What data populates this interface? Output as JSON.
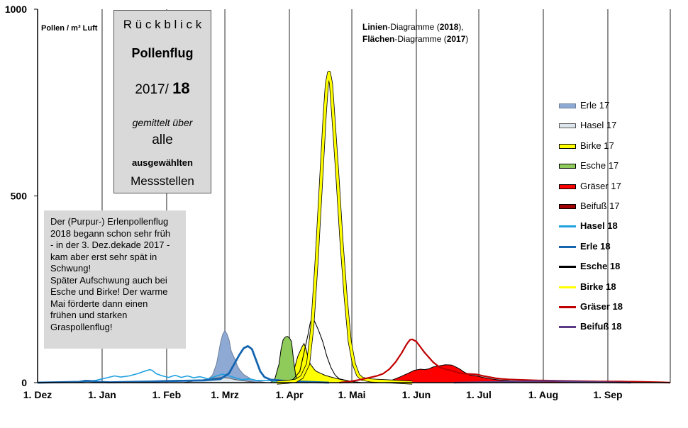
{
  "chart_data": {
    "type": "area",
    "y_axis_unit": "Pollen / m³ Luft",
    "ylim": [
      0,
      1000
    ],
    "y_ticks": [
      "0",
      "500",
      "1000"
    ],
    "x_ticks": [
      "1. Dez",
      "1. Jan",
      "1. Feb",
      "1. Mrz",
      "1. Apr",
      "1. Mai",
      "1. Jun",
      "1. Jul",
      "1. Aug",
      "1. Sep"
    ],
    "x_tick_days": [
      0,
      31,
      62,
      90,
      121,
      151,
      182,
      212,
      243,
      274
    ],
    "xlim_days": [
      0,
      304
    ],
    "grid": "vertical lines at month starts",
    "subtitle_line1_bold": "Linien",
    "subtitle_line1_rest": "-Diagramme (",
    "subtitle_line1_year": "2018",
    "subtitle_line1_end": "),",
    "subtitle_line2_bold": "Flächen",
    "subtitle_line2_rest": "-Diagramme (",
    "subtitle_line2_year": "2017",
    "subtitle_line2_end": ")",
    "title_box": {
      "line1": "R ü c k b l i c k",
      "line2": "Pollenflug",
      "line3_a": "2017/",
      "line3_b": "18",
      "line4": "gemittelt über",
      "line5": "alle",
      "line6": "ausgewählten",
      "line7": "Messstellen"
    },
    "note": [
      "Der (Purpur-) Erlenpollenflug",
      "2018  begann schon sehr früh",
      "- in der 3. Dez.dekade 2017 -",
      "kam aber erst sehr spät in",
      "Schwung!",
      "Später Aufschwung auch bei",
      "Esche und Birke! Der warme",
      "Mai förderte dann einen",
      "frühen und starken",
      "Graspollenflug!"
    ],
    "series": [
      {
        "name": "Erle 17",
        "kind": "area",
        "color": "#8ea9d3",
        "stroke": "#6e7f99",
        "bold": false,
        "points": [
          [
            80,
            0
          ],
          [
            84,
            20
          ],
          [
            86,
            50
          ],
          [
            87,
            80
          ],
          [
            88,
            110
          ],
          [
            89,
            130
          ],
          [
            90,
            140
          ],
          [
            91,
            130
          ],
          [
            92,
            115
          ],
          [
            93,
            85
          ],
          [
            95,
            60
          ],
          [
            96,
            45
          ],
          [
            97,
            35
          ],
          [
            99,
            22
          ],
          [
            101,
            15
          ],
          [
            103,
            8
          ],
          [
            106,
            4
          ],
          [
            110,
            0
          ]
        ]
      },
      {
        "name": "Hasel 17",
        "kind": "area",
        "color": "#dde6ec",
        "stroke": "#555555",
        "bold": false,
        "points": [
          [
            70,
            0
          ],
          [
            75,
            4
          ],
          [
            80,
            8
          ],
          [
            85,
            12
          ],
          [
            89,
            14
          ],
          [
            92,
            12
          ],
          [
            95,
            8
          ],
          [
            100,
            4
          ],
          [
            106,
            0
          ]
        ]
      },
      {
        "name": "Birke 17",
        "kind": "area",
        "color": "#ffff00",
        "stroke": "#000000",
        "bold": false,
        "points": [
          [
            118,
            0
          ],
          [
            121,
            6
          ],
          [
            123,
            30
          ],
          [
            125,
            70
          ],
          [
            127,
            95
          ],
          [
            128,
            105
          ],
          [
            129,
            90
          ],
          [
            130,
            65
          ],
          [
            131,
            50
          ],
          [
            133,
            35
          ],
          [
            134,
            30
          ],
          [
            136,
            25
          ],
          [
            138,
            20
          ],
          [
            141,
            15
          ],
          [
            146,
            8
          ],
          [
            151,
            3
          ],
          [
            156,
            0
          ]
        ]
      },
      {
        "name": "Esche 17",
        "kind": "area",
        "color": "#8fcb5a",
        "stroke": "#000000",
        "bold": false,
        "points": [
          [
            112,
            0
          ],
          [
            114,
            10
          ],
          [
            116,
            50
          ],
          [
            117,
            90
          ],
          [
            118,
            115
          ],
          [
            119,
            122
          ],
          [
            120,
            124
          ],
          [
            121,
            120
          ],
          [
            122,
            110
          ],
          [
            123,
            60
          ],
          [
            124,
            20
          ],
          [
            125,
            5
          ],
          [
            128,
            0
          ]
        ]
      },
      {
        "name": "Gräser 17",
        "kind": "area",
        "color": "#ff0000",
        "stroke": "#000000",
        "bold": false,
        "points": [
          [
            165,
            0
          ],
          [
            170,
            6
          ],
          [
            174,
            15
          ],
          [
            178,
            25
          ],
          [
            181,
            33
          ],
          [
            184,
            36
          ],
          [
            186,
            35
          ],
          [
            188,
            37
          ],
          [
            190,
            42
          ],
          [
            193,
            45
          ],
          [
            196,
            48
          ],
          [
            199,
            47
          ],
          [
            201,
            42
          ],
          [
            203,
            36
          ],
          [
            205,
            28
          ],
          [
            208,
            20
          ],
          [
            211,
            18
          ],
          [
            214,
            14
          ],
          [
            218,
            10
          ],
          [
            222,
            7
          ],
          [
            227,
            5
          ],
          [
            235,
            3
          ],
          [
            242,
            2
          ],
          [
            245,
            0
          ]
        ]
      },
      {
        "name": "Beifuß 17",
        "kind": "area",
        "color": "#a00000",
        "stroke": "#000000",
        "bold": false,
        "points": [
          [
            225,
            0
          ],
          [
            230,
            3
          ],
          [
            236,
            5
          ],
          [
            243,
            6
          ],
          [
            248,
            5
          ],
          [
            253,
            4
          ],
          [
            258,
            2
          ],
          [
            262,
            0
          ]
        ]
      },
      {
        "name": "Hasel 18",
        "kind": "line",
        "color": "#1fa0e0",
        "width": 1.6,
        "bold": true,
        "points": [
          [
            0,
            0
          ],
          [
            20,
            2
          ],
          [
            25,
            4
          ],
          [
            28,
            6
          ],
          [
            31,
            10
          ],
          [
            34,
            14
          ],
          [
            37,
            18
          ],
          [
            40,
            15
          ],
          [
            44,
            18
          ],
          [
            48,
            24
          ],
          [
            51,
            30
          ],
          [
            54,
            35
          ],
          [
            55,
            33
          ],
          [
            57,
            24
          ],
          [
            60,
            18
          ],
          [
            63,
            14
          ],
          [
            66,
            20
          ],
          [
            69,
            14
          ],
          [
            72,
            18
          ],
          [
            75,
            13
          ],
          [
            78,
            16
          ],
          [
            82,
            10
          ],
          [
            86,
            18
          ],
          [
            89,
            23
          ],
          [
            92,
            18
          ],
          [
            95,
            13
          ],
          [
            98,
            8
          ],
          [
            102,
            10
          ],
          [
            105,
            6
          ],
          [
            110,
            6
          ],
          [
            115,
            4
          ],
          [
            120,
            2
          ],
          [
            130,
            0
          ]
        ]
      },
      {
        "name": "Erle 18",
        "kind": "line",
        "color": "#1565b0",
        "width": 2.8,
        "bold": true,
        "points": [
          [
            0,
            0
          ],
          [
            20,
            2
          ],
          [
            23,
            5
          ],
          [
            26,
            4
          ],
          [
            29,
            2
          ],
          [
            35,
            1
          ],
          [
            45,
            2
          ],
          [
            55,
            3
          ],
          [
            60,
            4
          ],
          [
            70,
            5
          ],
          [
            80,
            6
          ],
          [
            88,
            10
          ],
          [
            92,
            25
          ],
          [
            95,
            55
          ],
          [
            97,
            75
          ],
          [
            99,
            92
          ],
          [
            101,
            98
          ],
          [
            103,
            90
          ],
          [
            105,
            60
          ],
          [
            107,
            30
          ],
          [
            109,
            15
          ],
          [
            112,
            8
          ],
          [
            116,
            6
          ],
          [
            120,
            4
          ],
          [
            130,
            2
          ],
          [
            140,
            0
          ]
        ]
      },
      {
        "name": "Esche 18",
        "kind": "line",
        "color": "#000000",
        "width": 1.1,
        "bold": true,
        "points": [
          [
            120,
            0
          ],
          [
            123,
            10
          ],
          [
            126,
            30
          ],
          [
            128,
            80
          ],
          [
            130,
            130
          ],
          [
            131,
            160
          ],
          [
            132,
            175
          ],
          [
            133,
            165
          ],
          [
            135,
            140
          ],
          [
            137,
            110
          ],
          [
            139,
            70
          ],
          [
            141,
            40
          ],
          [
            143,
            20
          ],
          [
            145,
            10
          ],
          [
            150,
            4
          ],
          [
            155,
            0
          ]
        ]
      },
      {
        "name": "Birke 18",
        "kind": "line",
        "color": "#ffff00",
        "width": 3.6,
        "bold": true,
        "points": [
          [
            115,
            0
          ],
          [
            120,
            2
          ],
          [
            124,
            5
          ],
          [
            127,
            15
          ],
          [
            130,
            50
          ],
          [
            132,
            150
          ],
          [
            134,
            320
          ],
          [
            136,
            520
          ],
          [
            138,
            720
          ],
          [
            139,
            800
          ],
          [
            140,
            830
          ],
          [
            141,
            800
          ],
          [
            142,
            720
          ],
          [
            144,
            560
          ],
          [
            146,
            380
          ],
          [
            148,
            230
          ],
          [
            150,
            110
          ],
          [
            152,
            50
          ],
          [
            154,
            20
          ],
          [
            156,
            10
          ],
          [
            160,
            6
          ],
          [
            163,
            5
          ],
          [
            170,
            3
          ],
          [
            180,
            0
          ]
        ]
      },
      {
        "name": "Gräser 18",
        "kind": "line",
        "color": "#c00000",
        "width": 2.2,
        "bold": true,
        "points": [
          [
            145,
            0
          ],
          [
            150,
            3
          ],
          [
            155,
            8
          ],
          [
            160,
            14
          ],
          [
            163,
            18
          ],
          [
            166,
            24
          ],
          [
            169,
            36
          ],
          [
            172,
            55
          ],
          [
            175,
            80
          ],
          [
            177,
            100
          ],
          [
            178,
            108
          ],
          [
            179,
            115
          ],
          [
            180,
            116
          ],
          [
            182,
            110
          ],
          [
            184,
            95
          ],
          [
            186,
            80
          ],
          [
            188,
            68
          ],
          [
            190,
            55
          ],
          [
            193,
            42
          ],
          [
            196,
            36
          ],
          [
            199,
            32
          ],
          [
            202,
            27
          ],
          [
            205,
            24
          ],
          [
            208,
            23
          ],
          [
            211,
            22
          ],
          [
            214,
            18
          ],
          [
            217,
            15
          ],
          [
            220,
            12
          ],
          [
            223,
            10
          ],
          [
            226,
            9
          ],
          [
            230,
            8
          ],
          [
            240,
            6
          ],
          [
            250,
            5
          ],
          [
            260,
            4
          ],
          [
            270,
            3
          ],
          [
            280,
            3
          ],
          [
            290,
            2
          ],
          [
            300,
            1
          ],
          [
            304,
            0
          ]
        ]
      },
      {
        "name": "Beifuß 18",
        "kind": "line",
        "color": "#5b3a86",
        "width": 2.2,
        "bold": true,
        "points": [
          [
            200,
            0
          ],
          [
            210,
            1
          ],
          [
            220,
            2
          ],
          [
            230,
            3
          ],
          [
            240,
            4
          ],
          [
            247,
            5
          ],
          [
            252,
            4
          ],
          [
            258,
            3
          ],
          [
            265,
            2
          ],
          [
            275,
            1
          ],
          [
            285,
            0
          ]
        ]
      }
    ]
  }
}
